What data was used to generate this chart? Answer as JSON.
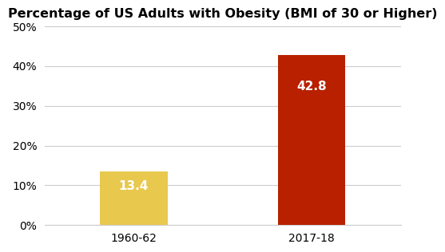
{
  "categories": [
    "1960-62",
    "2017-18"
  ],
  "values": [
    13.4,
    42.8
  ],
  "bar_colors": [
    "#E8C94E",
    "#B82000"
  ],
  "title": "Percentage of US Adults with Obesity (BMI of 30 or Higher)",
  "title_fontsize": 11.5,
  "title_fontweight": "bold",
  "ylim": [
    0,
    50
  ],
  "yticks": [
    0,
    10,
    20,
    30,
    40,
    50
  ],
  "label_colors": [
    "#ffffff",
    "#ffffff"
  ],
  "bar_label_fontsize": 11,
  "bar_label_fontweight": "bold",
  "tick_label_fontsize": 10,
  "background_color": "#ffffff",
  "grid_color": "#cccccc",
  "bar_width": 0.38
}
